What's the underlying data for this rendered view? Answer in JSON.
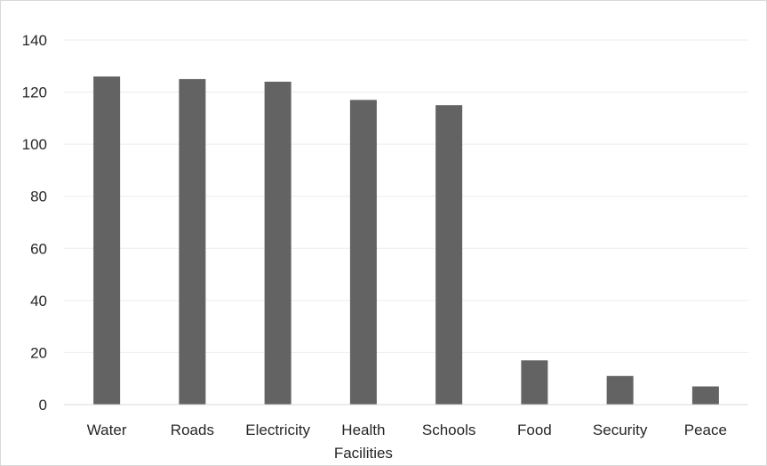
{
  "chart_data": {
    "type": "bar",
    "title": "",
    "xlabel": "",
    "ylabel": "",
    "categories": [
      [
        "Water"
      ],
      [
        "Roads"
      ],
      [
        "Electricity"
      ],
      [
        "Health",
        "Facilities"
      ],
      [
        "Schools"
      ],
      [
        "Food"
      ],
      [
        "Security"
      ],
      [
        "Peace"
      ]
    ],
    "values": [
      126,
      125,
      124,
      117,
      115,
      17,
      11,
      7
    ],
    "ylim": [
      0,
      140
    ],
    "yticks": [
      "0",
      "20",
      "40",
      "60",
      "80",
      "100",
      "120",
      "140"
    ],
    "grid": true,
    "legend": "none",
    "bar_color": "#636363",
    "grid_color": "#ececec",
    "axis_color": "#d9d9d9"
  }
}
